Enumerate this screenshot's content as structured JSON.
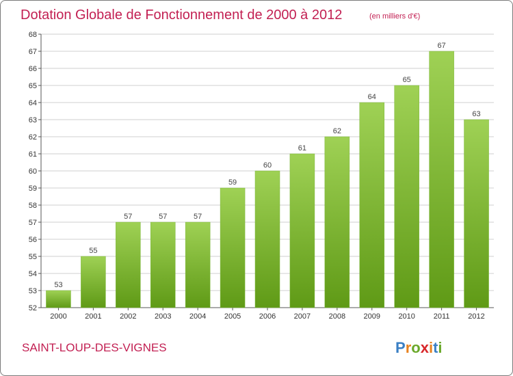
{
  "header": {
    "title": "Dotation Globale de Fonctionnement de 2000 à 2012",
    "subtitle": "(en milliers d'€)"
  },
  "footer": {
    "commune": "SAINT-LOUP-DES-VIGNES",
    "logo_text": "Proxiti"
  },
  "colors": {
    "bar_light": "#9fd155",
    "bar_dark": "#5f9a16",
    "title": "#c21f52",
    "grid": "#cfcfcf"
  },
  "chart_data": {
    "type": "bar",
    "title": "Dotation Globale de Fonctionnement de 2000 à 2012",
    "subtitle": "(en milliers d'€)",
    "xlabel": "",
    "ylabel": "",
    "categories": [
      "2000",
      "2001",
      "2002",
      "2003",
      "2004",
      "2005",
      "2006",
      "2007",
      "2008",
      "2009",
      "2010",
      "2011",
      "2012"
    ],
    "values": [
      53,
      55,
      57,
      57,
      57,
      59,
      60,
      61,
      62,
      64,
      65,
      67,
      63
    ],
    "ylim": [
      52,
      68
    ],
    "yticks": [
      52,
      53,
      54,
      55,
      56,
      57,
      58,
      59,
      60,
      61,
      62,
      63,
      64,
      65,
      66,
      67,
      68
    ],
    "grid": true,
    "data_labels": true
  }
}
